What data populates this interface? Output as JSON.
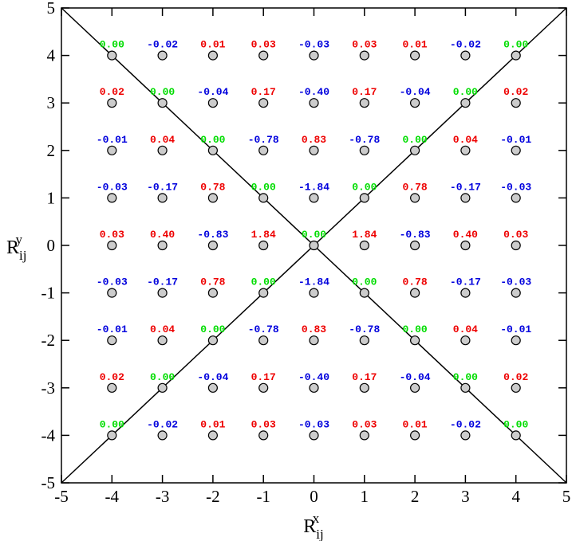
{
  "chart_data": {
    "type": "scatter",
    "x": [
      -4,
      -3,
      -2,
      -1,
      0,
      1,
      2,
      3,
      4
    ],
    "y": [
      4,
      3,
      2,
      1,
      0,
      -1,
      -2,
      -3,
      -4
    ],
    "values": [
      [
        0,
        -0.02,
        0.01,
        0.03,
        -0.03,
        0.03,
        0.01,
        -0.02,
        0
      ],
      [
        0.02,
        0,
        -0.04,
        0.17,
        -0.4,
        0.17,
        -0.04,
        0,
        0.02
      ],
      [
        -0.01,
        0.04,
        0,
        -0.78,
        0.83,
        -0.78,
        0,
        0.04,
        -0.01
      ],
      [
        -0.03,
        -0.17,
        0.78,
        0,
        -1.84,
        0,
        0.78,
        -0.17,
        -0.03
      ],
      [
        0.03,
        0.4,
        -0.83,
        1.84,
        0,
        1.84,
        -0.83,
        0.4,
        0.03
      ],
      [
        -0.03,
        -0.17,
        0.78,
        0,
        -1.84,
        0,
        0.78,
        -0.17,
        -0.03
      ],
      [
        -0.01,
        0.04,
        0,
        -0.78,
        0.83,
        -0.78,
        0,
        0.04,
        -0.01
      ],
      [
        0.02,
        0,
        -0.04,
        0.17,
        -0.4,
        0.17,
        -0.04,
        0,
        0.02
      ],
      [
        0,
        -0.02,
        0.01,
        0.03,
        -0.03,
        0.03,
        0.01,
        -0.02,
        0
      ]
    ],
    "value_labels": [
      [
        "0.00",
        "-0.02",
        "0.01",
        "0.03",
        "-0.03",
        "0.03",
        "0.01",
        "-0.02",
        "0.00"
      ],
      [
        "0.02",
        "0.00",
        "-0.04",
        "0.17",
        "-0.40",
        "0.17",
        "-0.04",
        "0.00",
        "0.02"
      ],
      [
        "-0.01",
        "0.04",
        "0.00",
        "-0.78",
        "0.83",
        "-0.78",
        "0.00",
        "0.04",
        "-0.01"
      ],
      [
        "-0.03",
        "-0.17",
        "0.78",
        "0.00",
        "-1.84",
        "0.00",
        "0.78",
        "-0.17",
        "-0.03"
      ],
      [
        "0.03",
        "0.40",
        "-0.83",
        "1.84",
        "0.00",
        "1.84",
        "-0.83",
        "0.40",
        "0.03"
      ],
      [
        "-0.03",
        "-0.17",
        "0.78",
        "0.00",
        "-1.84",
        "0.00",
        "0.78",
        "-0.17",
        "-0.03"
      ],
      [
        "-0.01",
        "0.04",
        "0.00",
        "-0.78",
        "0.83",
        "-0.78",
        "0.00",
        "0.04",
        "-0.01"
      ],
      [
        "0.02",
        "0.00",
        "-0.04",
        "0.17",
        "-0.40",
        "0.17",
        "-0.04",
        "0.00",
        "0.02"
      ],
      [
        "0.00",
        "-0.02",
        "0.01",
        "0.03",
        "-0.03",
        "0.03",
        "0.01",
        "-0.02",
        "0.00"
      ]
    ],
    "label_colors": {
      "positive": "#ee0000",
      "negative": "#0000dd",
      "zero": "#00dd00"
    },
    "marker_color": "#cccccc",
    "lines": [
      {
        "x": [
          -5,
          5
        ],
        "y": [
          -5,
          5
        ]
      },
      {
        "x": [
          -5,
          5
        ],
        "y": [
          5,
          -5
        ]
      }
    ],
    "x_label": {
      "base": "R",
      "sub": "ij",
      "sup": "x"
    },
    "y_label": {
      "base": "R",
      "sub": "ij",
      "sup": "y"
    },
    "xlim": [
      -5,
      5
    ],
    "xticks": [
      -5,
      -4,
      -3,
      -2,
      -1,
      0,
      1,
      2,
      3,
      4,
      5
    ],
    "ylim": [
      -5,
      5
    ],
    "yticks": [
      -5,
      -4,
      -3,
      -2,
      -1,
      0,
      1,
      2,
      3,
      4,
      5
    ]
  }
}
